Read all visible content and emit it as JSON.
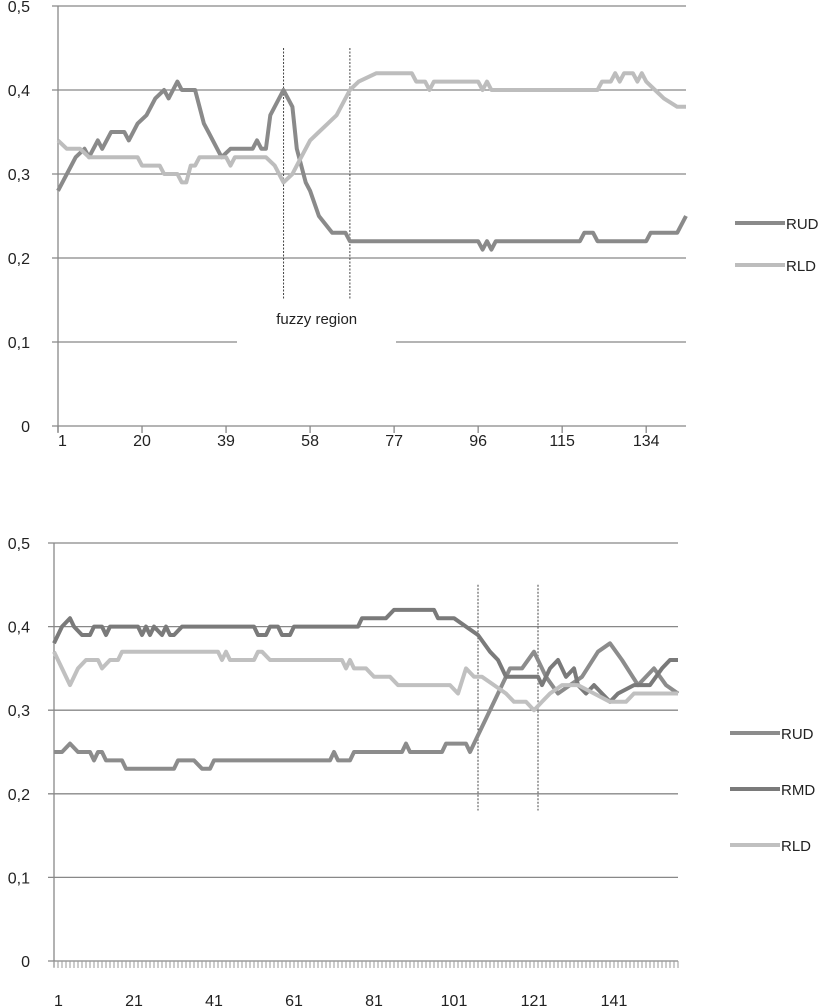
{
  "chart_data": [
    {
      "type": "line",
      "ylim": [
        0,
        0.5
      ],
      "yticks": [
        "0",
        "0,1",
        "0,2",
        "0,3",
        "0,4",
        "0,5"
      ],
      "xlim": [
        1,
        143
      ],
      "xticks": [
        "1",
        "20",
        "39",
        "58",
        "77",
        "96",
        "115",
        "134"
      ],
      "xtick_values": [
        1,
        20,
        39,
        58,
        77,
        96,
        115,
        134
      ],
      "grid": true,
      "legend": "right",
      "annotation": {
        "text": "fuzzy region",
        "lines_at_x": [
          52,
          67
        ]
      },
      "series": [
        {
          "name": "RUD",
          "color": "#8a8a8a",
          "points": [
            [
              1,
              0.28
            ],
            [
              5,
              0.32
            ],
            [
              7,
              0.33
            ],
            [
              8,
              0.32
            ],
            [
              10,
              0.34
            ],
            [
              11,
              0.33
            ],
            [
              13,
              0.35
            ],
            [
              16,
              0.35
            ],
            [
              17,
              0.34
            ],
            [
              19,
              0.36
            ],
            [
              21,
              0.37
            ],
            [
              23,
              0.39
            ],
            [
              25,
              0.4
            ],
            [
              26,
              0.39
            ],
            [
              27,
              0.4
            ],
            [
              28,
              0.41
            ],
            [
              29,
              0.4
            ],
            [
              32,
              0.4
            ],
            [
              34,
              0.36
            ],
            [
              35,
              0.35
            ],
            [
              37,
              0.33
            ],
            [
              38,
              0.32
            ],
            [
              40,
              0.33
            ],
            [
              45,
              0.33
            ],
            [
              46,
              0.34
            ],
            [
              47,
              0.33
            ],
            [
              48,
              0.33
            ],
            [
              49,
              0.37
            ],
            [
              52,
              0.4
            ],
            [
              54,
              0.38
            ],
            [
              55,
              0.33
            ],
            [
              57,
              0.29
            ],
            [
              58,
              0.28
            ],
            [
              60,
              0.25
            ],
            [
              63,
              0.23
            ],
            [
              66,
              0.23
            ],
            [
              67,
              0.22
            ],
            [
              96,
              0.22
            ],
            [
              97,
              0.21
            ],
            [
              98,
              0.22
            ],
            [
              99,
              0.21
            ],
            [
              100,
              0.22
            ],
            [
              119,
              0.22
            ],
            [
              120,
              0.23
            ],
            [
              122,
              0.23
            ],
            [
              123,
              0.22
            ],
            [
              134,
              0.22
            ],
            [
              135,
              0.23
            ],
            [
              141,
              0.23
            ],
            [
              143,
              0.25
            ]
          ]
        },
        {
          "name": "RLD",
          "color": "#bdbdbd",
          "points": [
            [
              1,
              0.34
            ],
            [
              3,
              0.33
            ],
            [
              6,
              0.33
            ],
            [
              8,
              0.32
            ],
            [
              19,
              0.32
            ],
            [
              20,
              0.31
            ],
            [
              24,
              0.31
            ],
            [
              25,
              0.3
            ],
            [
              28,
              0.3
            ],
            [
              29,
              0.29
            ],
            [
              30,
              0.29
            ],
            [
              31,
              0.31
            ],
            [
              32,
              0.31
            ],
            [
              33,
              0.32
            ],
            [
              39,
              0.32
            ],
            [
              40,
              0.31
            ],
            [
              41,
              0.32
            ],
            [
              48,
              0.32
            ],
            [
              50,
              0.31
            ],
            [
              52,
              0.29
            ],
            [
              54,
              0.3
            ],
            [
              56,
              0.32
            ],
            [
              58,
              0.34
            ],
            [
              60,
              0.35
            ],
            [
              62,
              0.36
            ],
            [
              64,
              0.37
            ],
            [
              67,
              0.4
            ],
            [
              69,
              0.41
            ],
            [
              73,
              0.42
            ],
            [
              81,
              0.42
            ],
            [
              82,
              0.41
            ],
            [
              84,
              0.41
            ],
            [
              85,
              0.4
            ],
            [
              86,
              0.41
            ],
            [
              96,
              0.41
            ],
            [
              97,
              0.4
            ],
            [
              98,
              0.41
            ],
            [
              99,
              0.4
            ],
            [
              123,
              0.4
            ],
            [
              124,
              0.41
            ],
            [
              126,
              0.41
            ],
            [
              127,
              0.42
            ],
            [
              128,
              0.41
            ],
            [
              129,
              0.42
            ],
            [
              131,
              0.42
            ],
            [
              132,
              0.41
            ],
            [
              133,
              0.42
            ],
            [
              134,
              0.41
            ],
            [
              136,
              0.4
            ],
            [
              138,
              0.39
            ],
            [
              141,
              0.38
            ],
            [
              143,
              0.38
            ]
          ]
        }
      ]
    },
    {
      "type": "line",
      "ylim": [
        0,
        0.5
      ],
      "yticks": [
        "0",
        "0,1",
        "0,2",
        "0,3",
        "0,4",
        "0,5"
      ],
      "xlim": [
        1,
        157
      ],
      "xticks": [
        "1",
        "21",
        "41",
        "61",
        "81",
        "101",
        "121",
        "141"
      ],
      "xtick_values": [
        1,
        21,
        41,
        61,
        81,
        101,
        121,
        141
      ],
      "grid": true,
      "legend": "right",
      "annotation": {
        "lines_at_x": [
          107,
          122
        ]
      },
      "series": [
        {
          "name": "RUD",
          "color": "#8c8c8c",
          "points": [
            [
              1,
              0.25
            ],
            [
              3,
              0.25
            ],
            [
              5,
              0.26
            ],
            [
              7,
              0.25
            ],
            [
              10,
              0.25
            ],
            [
              11,
              0.24
            ],
            [
              12,
              0.25
            ],
            [
              13,
              0.25
            ],
            [
              14,
              0.24
            ],
            [
              18,
              0.24
            ],
            [
              19,
              0.23
            ],
            [
              31,
              0.23
            ],
            [
              32,
              0.24
            ],
            [
              36,
              0.24
            ],
            [
              38,
              0.23
            ],
            [
              40,
              0.23
            ],
            [
              41,
              0.24
            ],
            [
              70,
              0.24
            ],
            [
              71,
              0.25
            ],
            [
              72,
              0.24
            ],
            [
              75,
              0.24
            ],
            [
              76,
              0.25
            ],
            [
              88,
              0.25
            ],
            [
              89,
              0.26
            ],
            [
              90,
              0.25
            ],
            [
              98,
              0.25
            ],
            [
              99,
              0.26
            ],
            [
              104,
              0.26
            ],
            [
              105,
              0.25
            ],
            [
              107,
              0.27
            ],
            [
              110,
              0.3
            ],
            [
              113,
              0.33
            ],
            [
              115,
              0.35
            ],
            [
              118,
              0.35
            ],
            [
              121,
              0.37
            ],
            [
              124,
              0.34
            ],
            [
              127,
              0.32
            ],
            [
              130,
              0.33
            ],
            [
              133,
              0.34
            ],
            [
              137,
              0.37
            ],
            [
              140,
              0.38
            ],
            [
              143,
              0.36
            ],
            [
              147,
              0.33
            ],
            [
              151,
              0.35
            ],
            [
              154,
              0.33
            ],
            [
              157,
              0.32
            ]
          ]
        },
        {
          "name": "RMD",
          "color": "#7a7a7a",
          "points": [
            [
              1,
              0.38
            ],
            [
              3,
              0.4
            ],
            [
              5,
              0.41
            ],
            [
              6,
              0.4
            ],
            [
              8,
              0.39
            ],
            [
              10,
              0.39
            ],
            [
              11,
              0.4
            ],
            [
              13,
              0.4
            ],
            [
              14,
              0.39
            ],
            [
              15,
              0.4
            ],
            [
              22,
              0.4
            ],
            [
              23,
              0.39
            ],
            [
              24,
              0.4
            ],
            [
              25,
              0.39
            ],
            [
              26,
              0.4
            ],
            [
              28,
              0.39
            ],
            [
              29,
              0.4
            ],
            [
              30,
              0.39
            ],
            [
              31,
              0.39
            ],
            [
              33,
              0.4
            ],
            [
              51,
              0.4
            ],
            [
              52,
              0.39
            ],
            [
              54,
              0.39
            ],
            [
              55,
              0.4
            ],
            [
              57,
              0.4
            ],
            [
              58,
              0.39
            ],
            [
              60,
              0.39
            ],
            [
              61,
              0.4
            ],
            [
              77,
              0.4
            ],
            [
              78,
              0.41
            ],
            [
              84,
              0.41
            ],
            [
              86,
              0.42
            ],
            [
              96,
              0.42
            ],
            [
              97,
              0.41
            ],
            [
              101,
              0.41
            ],
            [
              104,
              0.4
            ],
            [
              107,
              0.39
            ],
            [
              110,
              0.37
            ],
            [
              112,
              0.36
            ],
            [
              114,
              0.34
            ],
            [
              122,
              0.34
            ],
            [
              123,
              0.33
            ],
            [
              125,
              0.35
            ],
            [
              127,
              0.36
            ],
            [
              129,
              0.34
            ],
            [
              131,
              0.35
            ],
            [
              132,
              0.33
            ],
            [
              134,
              0.32
            ],
            [
              136,
              0.33
            ],
            [
              138,
              0.32
            ],
            [
              140,
              0.31
            ],
            [
              142,
              0.32
            ],
            [
              146,
              0.33
            ],
            [
              150,
              0.33
            ],
            [
              153,
              0.35
            ],
            [
              155,
              0.36
            ],
            [
              157,
              0.36
            ]
          ]
        },
        {
          "name": "RLD",
          "color": "#c0c0c0",
          "points": [
            [
              1,
              0.37
            ],
            [
              3,
              0.35
            ],
            [
              5,
              0.33
            ],
            [
              7,
              0.35
            ],
            [
              9,
              0.36
            ],
            [
              12,
              0.36
            ],
            [
              13,
              0.35
            ],
            [
              15,
              0.36
            ],
            [
              17,
              0.36
            ],
            [
              18,
              0.37
            ],
            [
              42,
              0.37
            ],
            [
              43,
              0.36
            ],
            [
              44,
              0.37
            ],
            [
              45,
              0.36
            ],
            [
              51,
              0.36
            ],
            [
              52,
              0.37
            ],
            [
              53,
              0.37
            ],
            [
              55,
              0.36
            ],
            [
              73,
              0.36
            ],
            [
              74,
              0.35
            ],
            [
              75,
              0.36
            ],
            [
              76,
              0.35
            ],
            [
              79,
              0.35
            ],
            [
              81,
              0.34
            ],
            [
              85,
              0.34
            ],
            [
              87,
              0.33
            ],
            [
              100,
              0.33
            ],
            [
              102,
              0.32
            ],
            [
              104,
              0.35
            ],
            [
              106,
              0.34
            ],
            [
              108,
              0.34
            ],
            [
              111,
              0.33
            ],
            [
              114,
              0.32
            ],
            [
              116,
              0.31
            ],
            [
              119,
              0.31
            ],
            [
              121,
              0.3
            ],
            [
              123,
              0.31
            ],
            [
              125,
              0.32
            ],
            [
              128,
              0.33
            ],
            [
              132,
              0.33
            ],
            [
              136,
              0.32
            ],
            [
              140,
              0.31
            ],
            [
              144,
              0.31
            ],
            [
              146,
              0.32
            ],
            [
              148,
              0.32
            ],
            [
              157,
              0.32
            ]
          ]
        }
      ]
    }
  ]
}
